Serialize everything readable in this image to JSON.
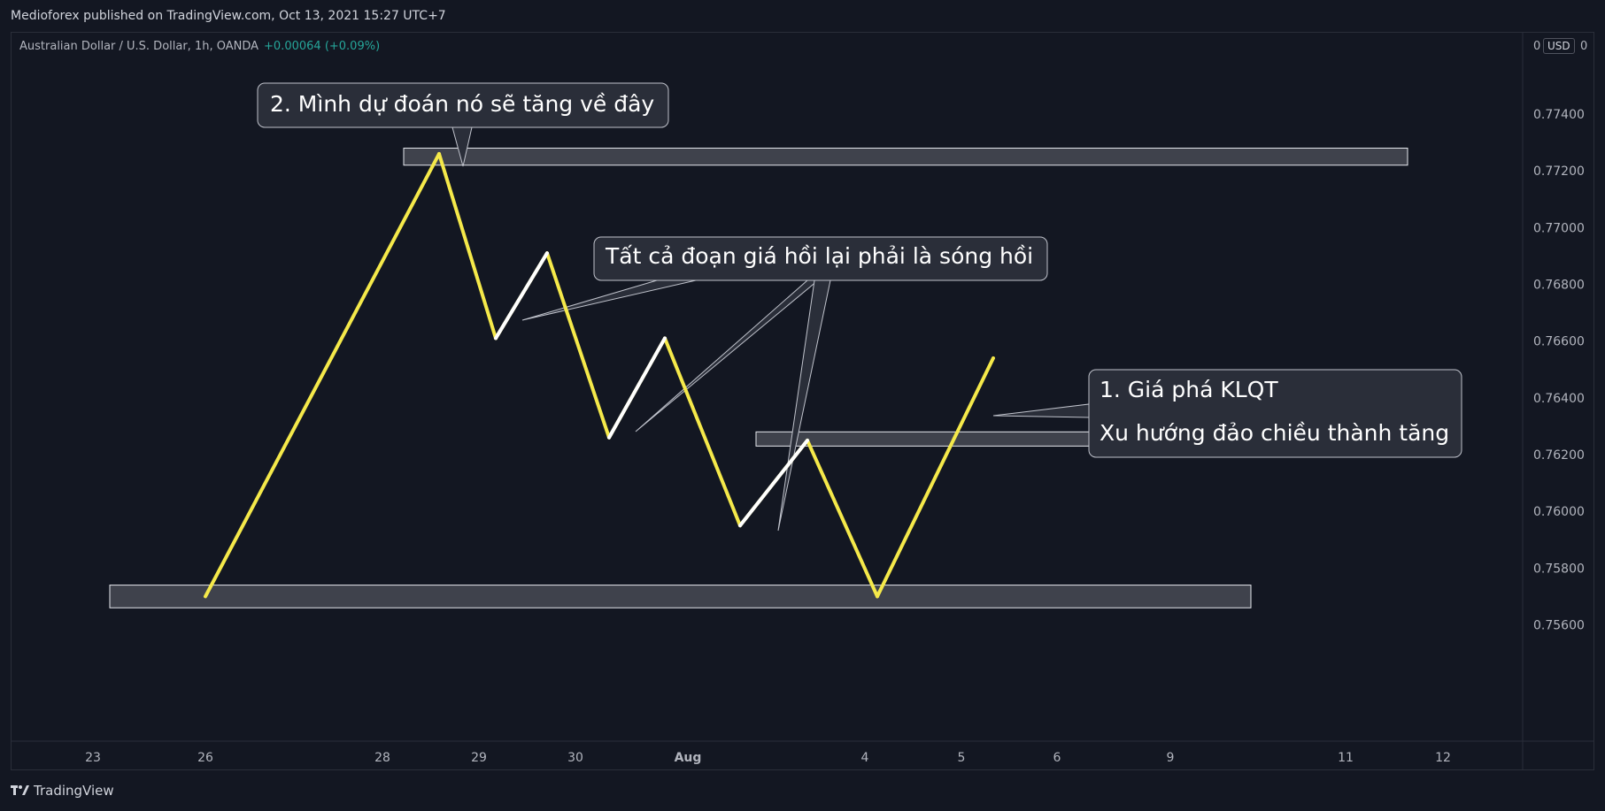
{
  "header": {
    "published": "Medioforex published on TradingView.com, Oct 13, 2021 15:27 UTC+7"
  },
  "symbol": {
    "name": "Australian Dollar / U.S. Dollar, 1h, OANDA",
    "change": "+0.00064 (+0.09%)"
  },
  "currency_badge": "USD",
  "top_scale_marks": [
    "0",
    "0"
  ],
  "footer": {
    "brand": "TradingView",
    "logo_icon": "tradingview-logo-icon"
  },
  "colors": {
    "background": "#131722",
    "line": "#f5e94a",
    "correction": "#ffffff",
    "zone_fill": "#3f424c",
    "callout_fill": "#2a2e39"
  },
  "chart_data": {
    "type": "line",
    "title": "",
    "x_ticks": [
      "23",
      "26",
      "28",
      "29",
      "30",
      "Aug",
      "4",
      "5",
      "6",
      "9",
      "11",
      "12"
    ],
    "y_ticks": [
      "0.77400",
      "0.77200",
      "0.77000",
      "0.76800",
      "0.76600",
      "0.76400",
      "0.76200",
      "0.76000",
      "0.75800",
      "0.75600"
    ],
    "ylim": [
      0.7552,
      0.7746
    ],
    "series": [
      {
        "points": [
          {
            "x": "26",
            "y": 0.757
          },
          {
            "x": "28.6",
            "y": 0.7726
          },
          {
            "x": "29.2",
            "y": 0.7661
          },
          {
            "x": "29.7",
            "y": 0.7691
          },
          {
            "x": "30.3",
            "y": 0.7626
          },
          {
            "x": "30.9",
            "y": 0.7661
          },
          {
            "x": "Aug 2.5",
            "y": 0.7595
          },
          {
            "x": "Aug 3.2",
            "y": 0.7625
          },
          {
            "x": "Aug 4.1",
            "y": 0.757
          },
          {
            "x": "Aug 5.3",
            "y": 0.7654
          }
        ]
      }
    ],
    "correction_legs": [
      {
        "from": {
          "x": "29.2",
          "y": 0.7661
        },
        "to": {
          "x": "29.7",
          "y": 0.7691
        }
      },
      {
        "from": {
          "x": "30.3",
          "y": 0.7626
        },
        "to": {
          "x": "30.9",
          "y": 0.7661
        }
      },
      {
        "from": {
          "x": "Aug 2.5",
          "y": 0.7595
        },
        "to": {
          "x": "Aug 3.2",
          "y": 0.7625
        }
      }
    ],
    "zones": [
      {
        "name": "top-zone",
        "y_from": 0.7722,
        "y_to": 0.7728
      },
      {
        "name": "mid-zone",
        "y_from": 0.7623,
        "y_to": 0.7628
      },
      {
        "name": "bottom-zone",
        "y_from": 0.7566,
        "y_to": 0.7574
      }
    ],
    "annotations": [
      {
        "text": "2. Mình dự đoán nó sẽ tăng về đây"
      },
      {
        "text": "Tất cả đoạn giá hồi lại phải là sóng hồi"
      },
      {
        "lines": [
          "1. Giá phá KLQT",
          "Xu hướng đảo chiều thành tăng"
        ]
      }
    ],
    "grid": false,
    "legend": "none"
  }
}
